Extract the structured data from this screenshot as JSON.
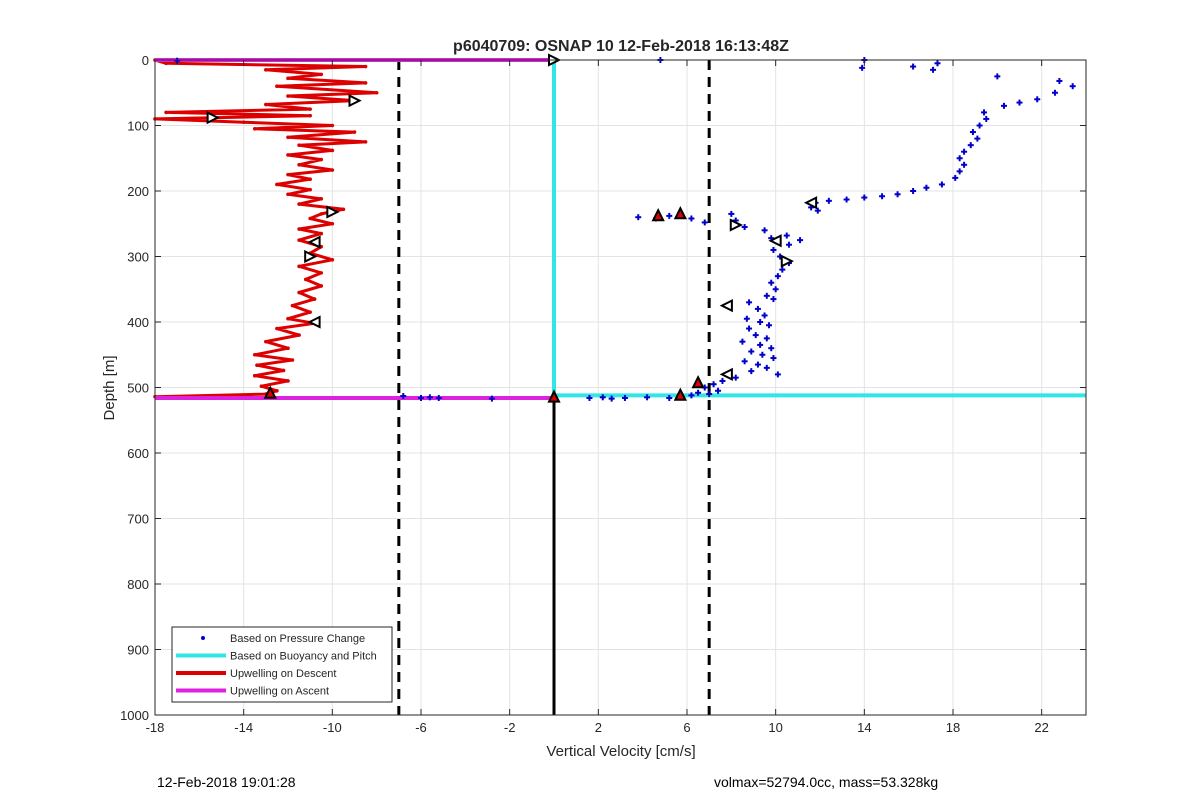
{
  "chart_data": {
    "type": "scatter",
    "title": "p6040709: OSNAP 10 12-Feb-2018 16:13:48Z",
    "xlabel": "Vertical Velocity [cm/s]",
    "ylabel": "Depth [m]",
    "xlim": [
      -18,
      24
    ],
    "ylim": [
      0,
      1000
    ],
    "y_reversed": true,
    "x_ticks": [
      -18,
      -14,
      -10,
      -6,
      -2,
      2,
      6,
      10,
      14,
      18,
      22
    ],
    "y_ticks": [
      0,
      100,
      200,
      300,
      400,
      500,
      600,
      700,
      800,
      900,
      1000
    ],
    "grid": true,
    "legend_position": "bottom-left",
    "colors": {
      "pressure": "#0000cc",
      "buoyancy": "#33e6e6",
      "descent": "#dd0000",
      "ascent": "#dd22dd",
      "reference": "#000000"
    },
    "legend": [
      {
        "label": "Based on Pressure Change",
        "key": "pressure",
        "style": "marker"
      },
      {
        "label": "Based on Buoyancy and Pitch",
        "key": "buoyancy",
        "style": "line"
      },
      {
        "label": "Upwelling on Descent",
        "key": "descent",
        "style": "line"
      },
      {
        "label": "Upwelling on Ascent",
        "key": "ascent",
        "style": "line"
      }
    ],
    "reference_lines": {
      "dashed_x": [
        -7,
        7
      ],
      "solid_x": 0
    },
    "series": [
      {
        "name": "Based on Pressure Change",
        "kind": "scatter",
        "points": [
          [
            -17,
            1
          ],
          [
            4.8,
            0
          ],
          [
            14,
            0
          ],
          [
            13.9,
            12
          ],
          [
            16.2,
            10
          ],
          [
            17.3,
            5
          ],
          [
            17.1,
            15
          ],
          [
            20,
            25
          ],
          [
            22.8,
            32
          ],
          [
            23.4,
            40
          ],
          [
            22.6,
            50
          ],
          [
            21.8,
            60
          ],
          [
            21,
            65
          ],
          [
            20.3,
            70
          ],
          [
            19.4,
            80
          ],
          [
            19.5,
            90
          ],
          [
            19.2,
            100
          ],
          [
            18.9,
            110
          ],
          [
            19.1,
            120
          ],
          [
            18.8,
            130
          ],
          [
            18.5,
            140
          ],
          [
            18.3,
            150
          ],
          [
            18.5,
            160
          ],
          [
            18.3,
            170
          ],
          [
            18.1,
            180
          ],
          [
            17.5,
            190
          ],
          [
            16.8,
            195
          ],
          [
            16.2,
            200
          ],
          [
            15.5,
            205
          ],
          [
            14.8,
            208
          ],
          [
            14,
            210
          ],
          [
            13.2,
            213
          ],
          [
            12.4,
            215
          ],
          [
            11.8,
            218
          ],
          [
            11.6,
            225
          ],
          [
            11.9,
            230
          ],
          [
            3.8,
            240
          ],
          [
            4.6,
            242
          ],
          [
            5.2,
            238
          ],
          [
            6.2,
            242
          ],
          [
            6.8,
            248
          ],
          [
            8,
            235
          ],
          [
            8.2,
            245
          ],
          [
            8.6,
            255
          ],
          [
            9.5,
            260
          ],
          [
            10.5,
            268
          ],
          [
            9.8,
            272
          ],
          [
            11.1,
            275
          ],
          [
            10.6,
            282
          ],
          [
            9.9,
            290
          ],
          [
            10.2,
            300
          ],
          [
            10.6,
            310
          ],
          [
            10.3,
            320
          ],
          [
            10.1,
            330
          ],
          [
            9.8,
            340
          ],
          [
            10,
            350
          ],
          [
            9.6,
            360
          ],
          [
            9.9,
            365
          ],
          [
            8.8,
            370
          ],
          [
            9.2,
            380
          ],
          [
            9.5,
            390
          ],
          [
            8.7,
            395
          ],
          [
            9.3,
            400
          ],
          [
            9.7,
            405
          ],
          [
            8.8,
            410
          ],
          [
            9.1,
            420
          ],
          [
            9.6,
            425
          ],
          [
            8.5,
            430
          ],
          [
            9.3,
            435
          ],
          [
            9.8,
            440
          ],
          [
            8.9,
            445
          ],
          [
            9.4,
            450
          ],
          [
            9.9,
            455
          ],
          [
            8.6,
            460
          ],
          [
            9.2,
            465
          ],
          [
            9.6,
            470
          ],
          [
            8.9,
            475
          ],
          [
            10.1,
            480
          ],
          [
            8.2,
            485
          ],
          [
            7.6,
            490
          ],
          [
            7.2,
            495
          ],
          [
            6.8,
            500
          ],
          [
            7.4,
            505
          ],
          [
            6.5,
            508
          ],
          [
            7,
            510
          ],
          [
            6.2,
            512
          ],
          [
            -6.8,
            513
          ],
          [
            -6,
            516
          ],
          [
            -5.6,
            515
          ],
          [
            -5.2,
            516
          ],
          [
            -2.8,
            517
          ],
          [
            1.6,
            516
          ],
          [
            2.2,
            515
          ],
          [
            2.6,
            517
          ],
          [
            3.2,
            516
          ],
          [
            4.2,
            515
          ],
          [
            5.2,
            516
          ]
        ]
      },
      {
        "name": "Based on Buoyancy and Pitch",
        "kind": "line",
        "points": [
          [
            0,
            0
          ],
          [
            0,
            512
          ],
          [
            24,
            512
          ]
        ]
      },
      {
        "name": "Upwelling on Descent",
        "kind": "line",
        "points": [
          [
            -18,
            0
          ],
          [
            -17.5,
            5
          ],
          [
            -8.5,
            10
          ],
          [
            -13,
            15
          ],
          [
            -10.5,
            22
          ],
          [
            -12,
            28
          ],
          [
            -8.5,
            35
          ],
          [
            -12.5,
            40
          ],
          [
            -8,
            50
          ],
          [
            -12,
            55
          ],
          [
            -9,
            62
          ],
          [
            -13,
            68
          ],
          [
            -11,
            75
          ],
          [
            -17.5,
            80
          ],
          [
            -11,
            85
          ],
          [
            -18,
            90
          ],
          [
            -14,
            95
          ],
          [
            -10,
            100
          ],
          [
            -13.5,
            105
          ],
          [
            -9,
            110
          ],
          [
            -12,
            118
          ],
          [
            -8.5,
            125
          ],
          [
            -11.5,
            130
          ],
          [
            -10,
            138
          ],
          [
            -12,
            145
          ],
          [
            -10.5,
            152
          ],
          [
            -11.5,
            160
          ],
          [
            -10,
            168
          ],
          [
            -12,
            175
          ],
          [
            -11,
            182
          ],
          [
            -12.5,
            190
          ],
          [
            -11,
            198
          ],
          [
            -12,
            205
          ],
          [
            -10.5,
            212
          ],
          [
            -11.5,
            220
          ],
          [
            -9.5,
            228
          ],
          [
            -10.5,
            235
          ],
          [
            -11,
            242
          ],
          [
            -10,
            250
          ],
          [
            -11.5,
            258
          ],
          [
            -10.5,
            265
          ],
          [
            -11.5,
            275
          ],
          [
            -10.5,
            285
          ],
          [
            -11,
            295
          ],
          [
            -10,
            305
          ],
          [
            -11.5,
            315
          ],
          [
            -10.5,
            325
          ],
          [
            -11.2,
            335
          ],
          [
            -10.5,
            345
          ],
          [
            -11.5,
            355
          ],
          [
            -10.8,
            365
          ],
          [
            -11.8,
            375
          ],
          [
            -11,
            385
          ],
          [
            -12,
            395
          ],
          [
            -10.8,
            402
          ],
          [
            -12.5,
            410
          ],
          [
            -11.5,
            420
          ],
          [
            -13,
            430
          ],
          [
            -12,
            440
          ],
          [
            -13.5,
            450
          ],
          [
            -11.8,
            458
          ],
          [
            -13.4,
            466
          ],
          [
            -12.2,
            474
          ],
          [
            -13.5,
            482
          ],
          [
            -12,
            490
          ],
          [
            -13.2,
            498
          ],
          [
            -12.5,
            505
          ],
          [
            -13,
            510
          ],
          [
            -18,
            514
          ]
        ]
      },
      {
        "name": "Upwelling on Ascent",
        "kind": "line",
        "segments": [
          [
            [
              -18,
              0
            ],
            [
              0,
              0
            ]
          ],
          [
            [
              -18,
              516
            ],
            [
              0,
              516
            ]
          ]
        ]
      }
    ],
    "markers": [
      {
        "shape": "tri-right",
        "x": 0,
        "y": 0
      },
      {
        "shape": "tri-right",
        "x": -9,
        "y": 62
      },
      {
        "shape": "tri-right",
        "x": -15.4,
        "y": 88
      },
      {
        "shape": "tri-right",
        "x": -10,
        "y": 232
      },
      {
        "shape": "tri-left",
        "x": -10.8,
        "y": 278
      },
      {
        "shape": "tri-right",
        "x": -11,
        "y": 300
      },
      {
        "shape": "tri-left",
        "x": -10.8,
        "y": 400
      },
      {
        "shape": "tri-up-red",
        "x": -12.8,
        "y": 508
      },
      {
        "shape": "tri-up-red",
        "x": 0,
        "y": 514
      },
      {
        "shape": "tri-up-red",
        "x": 4.7,
        "y": 237
      },
      {
        "shape": "tri-up-red",
        "x": 5.7,
        "y": 234
      },
      {
        "shape": "tri-left",
        "x": 11.6,
        "y": 218
      },
      {
        "shape": "tri-right",
        "x": 8.2,
        "y": 252
      },
      {
        "shape": "tri-left",
        "x": 10,
        "y": 276
      },
      {
        "shape": "tri-right",
        "x": 10.5,
        "y": 307
      },
      {
        "shape": "tri-left",
        "x": 7.8,
        "y": 375
      },
      {
        "shape": "tri-left",
        "x": 7.8,
        "y": 480
      },
      {
        "shape": "tri-up-red",
        "x": 6.5,
        "y": 492
      },
      {
        "shape": "tri-up-red",
        "x": 5.7,
        "y": 511
      }
    ]
  },
  "footer": {
    "left_text": "12-Feb-2018 19:01:28",
    "right_text": "volmax=52794.0cc, mass=53.328kg"
  }
}
